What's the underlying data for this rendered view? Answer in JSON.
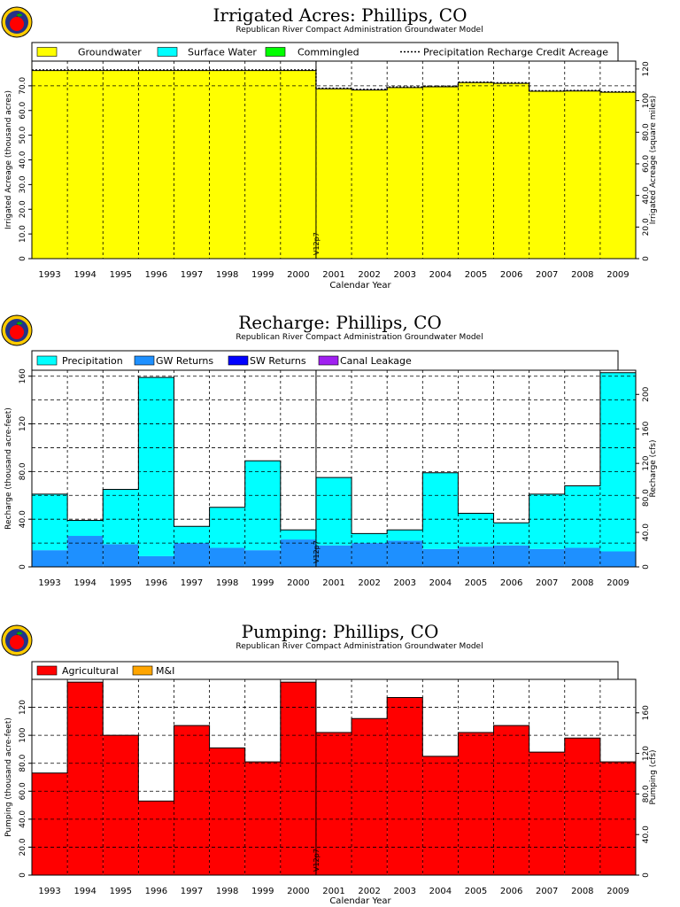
{
  "colors": {
    "groundwater": "#ffff00",
    "surface_water": "#00ffff",
    "commingled": "#00ff00",
    "precip_recharge": "#00ffff",
    "gw_returns": "#1e90ff",
    "sw_returns": "#0000ff",
    "canal_leakage": "#a020f0",
    "agricultural": "#ff0000",
    "mi": "#ffa500",
    "apple": "#ff0000",
    "logo_ring": "#ffcc00",
    "logo_inner": "#223388"
  },
  "icons": {
    "logo": "apple-logo-icon"
  },
  "chart_data": [
    {
      "id": "irrigated",
      "type": "area",
      "title": "Irrigated Acres: Phillips, CO",
      "subtitle": "Republican River Compact Administration Groundwater Model",
      "xlabel": "Calendar Year",
      "ylabel": "Irrigated Acreage (thousand acres)",
      "ylabel2": "Irrigated Acreage (square miles)",
      "categories": [
        "1993",
        "1994",
        "1995",
        "1996",
        "1997",
        "1998",
        "1999",
        "2000",
        "2001",
        "2002",
        "2003",
        "2004",
        "2005",
        "2006",
        "2007",
        "2008",
        "2009"
      ],
      "ylim": [
        0,
        80
      ],
      "y2lim": [
        0,
        125
      ],
      "yticks": [
        0,
        10,
        20,
        30,
        40,
        50,
        60,
        70
      ],
      "ytick_labels": [
        "0",
        "10.0",
        "20.0",
        "30.0",
        "40.0",
        "50.0",
        "60.0",
        "70.0"
      ],
      "y2ticks": [
        0,
        20,
        40,
        60,
        80,
        100,
        120
      ],
      "y2tick_labels": [
        "0",
        "20.0",
        "40.0",
        "60.0",
        "80.0",
        "100",
        "120"
      ],
      "hlines": [
        70,
        80
      ],
      "grid": true,
      "legend_position": "top",
      "series": [
        {
          "name": "Groundwater",
          "color_key": "groundwater",
          "values": [
            76.2,
            76.2,
            76.2,
            76.2,
            76.2,
            76.2,
            76.2,
            76.2,
            68.8,
            68.3,
            69.3,
            69.6,
            71.3,
            71.0,
            67.8,
            67.9,
            67.4
          ]
        },
        {
          "name": "Surface Water",
          "color_key": "surface_water",
          "values": [
            0,
            0,
            0,
            0,
            0,
            0,
            0,
            0,
            0,
            0,
            0,
            0,
            0,
            0,
            0,
            0,
            0
          ]
        },
        {
          "name": "Commingled",
          "color_key": "commingled",
          "values": [
            0,
            0,
            0,
            0,
            0,
            0,
            0,
            0,
            0,
            0,
            0,
            0,
            0,
            0,
            0,
            0,
            0
          ]
        }
      ],
      "line": {
        "name": "Precipitation Recharge Credit Acreage",
        "values": [
          76.4,
          76.4,
          76.4,
          76.4,
          76.4,
          76.4,
          76.4,
          76.4,
          69.0,
          68.5,
          69.5,
          69.8,
          71.5,
          71.2,
          68.0,
          68.1,
          67.6
        ]
      },
      "marker": {
        "label": "V12p7",
        "after_index": 7
      }
    },
    {
      "id": "recharge",
      "type": "area",
      "title": "Recharge: Phillips, CO",
      "subtitle": "Republican River Compact Administration Groundwater Model",
      "xlabel": "",
      "ylabel": "Recharge (thousand acre-feet)",
      "ylabel2": "Recharge (cfs)",
      "categories": [
        "1993",
        "1994",
        "1995",
        "1996",
        "1997",
        "1998",
        "1999",
        "2000",
        "2001",
        "2002",
        "2003",
        "2004",
        "2005",
        "2006",
        "2007",
        "2008",
        "2009"
      ],
      "ylim": [
        0,
        165
      ],
      "y2lim": [
        0,
        228
      ],
      "yticks": [
        0,
        40,
        80,
        120,
        160
      ],
      "ytick_labels": [
        "0",
        "40.0",
        "80.0",
        "120",
        "160"
      ],
      "y2ticks": [
        0,
        40,
        80,
        120,
        160,
        200
      ],
      "y2tick_labels": [
        "0",
        "40.0",
        "80.0",
        "120",
        "160",
        "200"
      ],
      "hlines": [
        20,
        40,
        60,
        80,
        100,
        120,
        140,
        160
      ],
      "grid": true,
      "legend_position": "top",
      "series": [
        {
          "name": "GW Returns",
          "color_key": "gw_returns",
          "values": [
            14,
            26,
            19,
            9,
            20,
            16,
            14,
            23,
            18,
            20,
            22,
            15,
            17,
            18,
            15,
            16,
            13
          ]
        },
        {
          "name": "SW Returns",
          "color_key": "sw_returns",
          "values": [
            0,
            0,
            0,
            0,
            0,
            0,
            0,
            0,
            0,
            0,
            0,
            0,
            0,
            0,
            0,
            0,
            0
          ]
        },
        {
          "name": "Canal Leakage",
          "color_key": "canal_leakage",
          "values": [
            0,
            0,
            0,
            0,
            0,
            0,
            0,
            0,
            0,
            0,
            0,
            0,
            0,
            0,
            0,
            0,
            0
          ]
        },
        {
          "name": "Precipitation",
          "color_key": "precip_recharge",
          "values": [
            47,
            13,
            46,
            150,
            14,
            34,
            75,
            8,
            57,
            8,
            9,
            64,
            28,
            19,
            46,
            52,
            150
          ]
        }
      ],
      "legend_order": [
        "Precipitation",
        "GW Returns",
        "SW Returns",
        "Canal Leakage"
      ],
      "marker": {
        "label": "V12p7",
        "after_index": 7
      }
    },
    {
      "id": "pumping",
      "type": "area",
      "title": "Pumping: Phillips, CO",
      "subtitle": "Republican River Compact Administration Groundwater Model",
      "xlabel": "Calendar Year",
      "ylabel": "Pumping (thousand acre-feet)",
      "ylabel2": "Pumping (cfs)",
      "categories": [
        "1993",
        "1994",
        "1995",
        "1996",
        "1997",
        "1998",
        "1999",
        "2000",
        "2001",
        "2002",
        "2003",
        "2004",
        "2005",
        "2006",
        "2007",
        "2008",
        "2009"
      ],
      "ylim": [
        0,
        140
      ],
      "y2lim": [
        0,
        193
      ],
      "yticks": [
        0,
        20,
        40,
        60,
        80,
        100,
        120
      ],
      "ytick_labels": [
        "0",
        "20.0",
        "40.0",
        "60.0",
        "80.0",
        "100",
        "120"
      ],
      "y2ticks": [
        0,
        40,
        80,
        120,
        160
      ],
      "y2tick_labels": [
        "0",
        "40.0",
        "80.0",
        "120",
        "160"
      ],
      "hlines": [
        20,
        40,
        60,
        80,
        100,
        120
      ],
      "grid": true,
      "legend_position": "top",
      "series": [
        {
          "name": "Agricultural",
          "color_key": "agricultural",
          "values": [
            73,
            138,
            100,
            53,
            107,
            91,
            81,
            138,
            102,
            112,
            127,
            85,
            102,
            107,
            88,
            98,
            81
          ]
        },
        {
          "name": "M&I",
          "color_key": "mi",
          "values": [
            0,
            0,
            0,
            0,
            0,
            0,
            0,
            0,
            0,
            0,
            0,
            0,
            0,
            0,
            0,
            0,
            0
          ]
        }
      ],
      "marker": {
        "label": "V12p7",
        "after_index": 7
      }
    }
  ]
}
